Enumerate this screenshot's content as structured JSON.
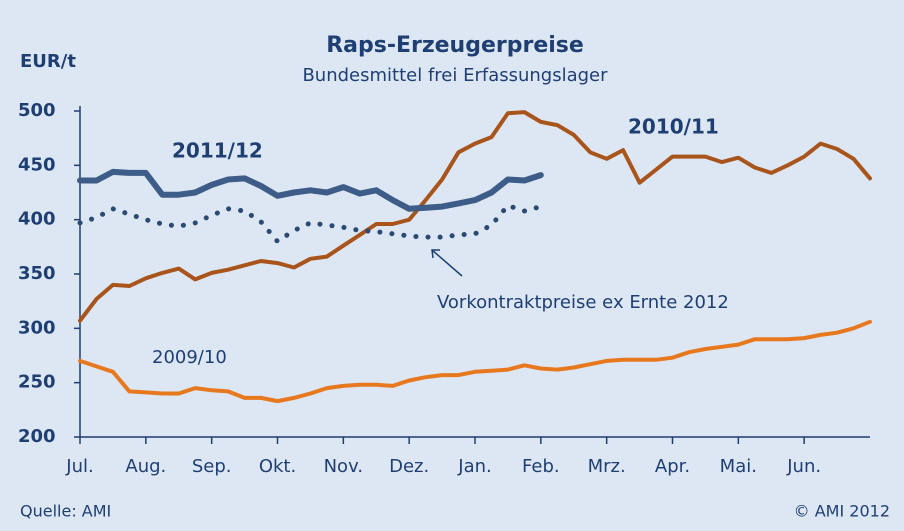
{
  "chart_data": {
    "type": "line",
    "title": "Raps-Erzeugerpreise",
    "subtitle": "Bundesmittel frei Erfassungslager",
    "y_label": "EUR/t",
    "source": "Quelle: AMI",
    "copyright": "© AMI 2012",
    "xlim": [
      0,
      12
    ],
    "xticks": [
      {
        "value": 0,
        "label": "Jul."
      },
      {
        "value": 1,
        "label": "Aug."
      },
      {
        "value": 2,
        "label": "Sep."
      },
      {
        "value": 3,
        "label": "Okt."
      },
      {
        "value": 4,
        "label": "Nov."
      },
      {
        "value": 5,
        "label": "Dez."
      },
      {
        "value": 6,
        "label": "Jan."
      },
      {
        "value": 7,
        "label": "Feb."
      },
      {
        "value": 8,
        "label": "Mrz."
      },
      {
        "value": 9,
        "label": "Apr."
      },
      {
        "value": 10,
        "label": "Mai."
      },
      {
        "value": 11,
        "label": "Jun."
      }
    ],
    "ylim": [
      200,
      500
    ],
    "yticks": [
      200,
      250,
      300,
      350,
      400,
      450,
      500
    ],
    "grid": false,
    "x": [
      0,
      0.25,
      0.5,
      0.75,
      1,
      1.25,
      1.5,
      1.75,
      2,
      2.25,
      2.5,
      2.75,
      3,
      3.25,
      3.5,
      3.75,
      4,
      4.25,
      4.5,
      4.75,
      5,
      5.25,
      5.5,
      5.75,
      6,
      6.25,
      6.5,
      6.75,
      7,
      7.25,
      7.5,
      7.75,
      8,
      8.25,
      8.5,
      8.75,
      9,
      9.25,
      9.5,
      9.75,
      10,
      10.25,
      10.5,
      10.75,
      11,
      11.25,
      11.5,
      11.75,
      12
    ],
    "series": [
      {
        "name": "2009/10",
        "color": "#e8781e",
        "width": 4,
        "style": "solid",
        "values": [
          270,
          265,
          260,
          242,
          241,
          240,
          240,
          245,
          243,
          242,
          236,
          236,
          233,
          236,
          240,
          245,
          247,
          248,
          248,
          247,
          252,
          255,
          257,
          257,
          260,
          261,
          262,
          266,
          263,
          262,
          264,
          267,
          270,
          271,
          271,
          271,
          273,
          278,
          281,
          283,
          285,
          290,
          290,
          290,
          291,
          294,
          296,
          300,
          306
        ]
      },
      {
        "name": "2010/11",
        "color": "#a8541b",
        "width": 4,
        "style": "solid",
        "values": [
          307,
          327,
          340,
          339,
          346,
          351,
          355,
          345,
          351,
          354,
          358,
          362,
          360,
          356,
          364,
          366,
          376,
          386,
          396,
          396,
          400,
          418,
          437,
          462,
          470,
          476,
          498,
          499,
          490,
          487,
          478,
          462,
          456,
          464,
          434,
          446,
          458,
          458,
          458,
          453,
          457,
          448,
          443,
          450,
          458,
          470,
          465,
          456,
          438
        ]
      },
      {
        "name": "2011/12",
        "color": "#3d5c87",
        "width": 6,
        "style": "solid",
        "values": [
          436,
          436,
          444,
          443,
          443,
          423,
          423,
          425,
          432,
          437,
          438,
          431,
          422,
          425,
          427,
          425,
          430,
          424,
          427,
          418,
          410,
          411,
          412,
          415,
          418,
          425,
          437,
          436,
          441,
          null,
          null,
          null,
          null,
          null,
          null,
          null,
          null,
          null,
          null,
          null,
          null,
          null,
          null,
          null,
          null,
          null,
          null,
          null,
          null
        ]
      },
      {
        "name": "Vorkontraktpreise ex Ernte 2012",
        "color": "#2b4a72",
        "width": 5,
        "style": "dotted",
        "values": [
          397,
          402,
          410,
          405,
          400,
          396,
          394,
          397,
          404,
          410,
          408,
          398,
          380,
          390,
          397,
          395,
          393,
          390,
          389,
          387,
          385,
          384,
          384,
          386,
          387,
          395,
          413,
          408,
          412,
          null,
          null,
          null,
          null,
          null,
          null,
          null,
          null,
          null,
          null,
          null,
          null,
          null,
          null,
          null,
          null,
          null,
          null,
          null,
          null
        ]
      }
    ]
  }
}
